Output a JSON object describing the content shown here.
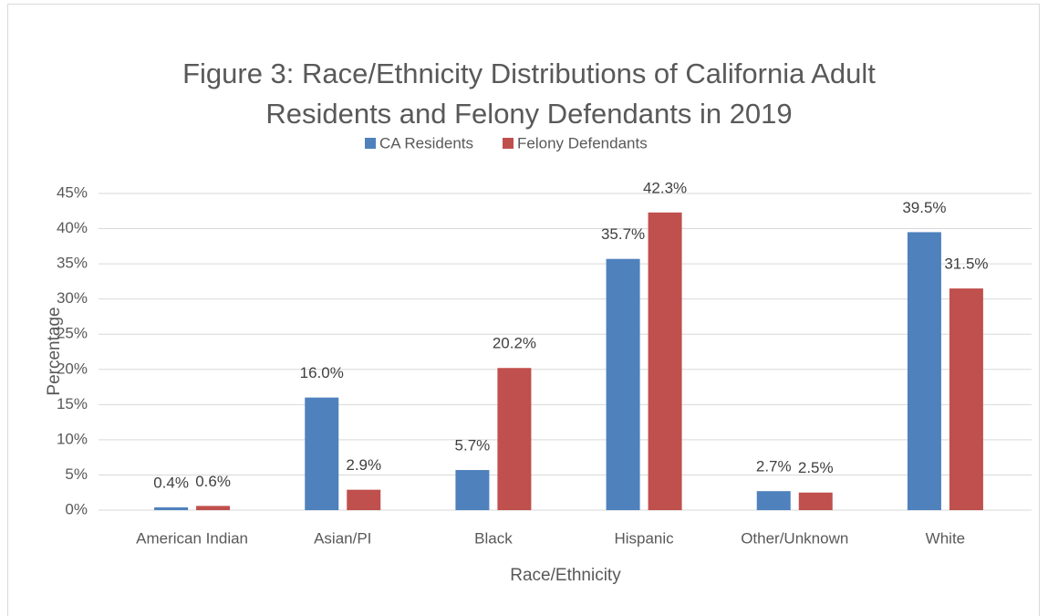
{
  "chart_data": {
    "type": "bar",
    "title_lines": [
      "Figure 3: Race/Ethnicity Distributions of California Adult",
      "Residents and Felony Defendants in 2019"
    ],
    "x_label": "Race/Ethnicity",
    "y_label": "Percentage",
    "categories": [
      "American Indian",
      "Asian/PI",
      "Black",
      "Hispanic",
      "Other/Unknown",
      "White"
    ],
    "series": [
      {
        "name": "CA Residents",
        "color": "#4f81bd",
        "values": [
          0.4,
          16.0,
          5.7,
          35.7,
          2.7,
          39.5
        ],
        "value_labels": [
          "0.4%",
          "16.0%",
          "5.7%",
          "35.7%",
          "2.7%",
          "39.5%"
        ]
      },
      {
        "name": "Felony Defendants",
        "color": "#c0504d",
        "values": [
          0.6,
          2.9,
          20.2,
          42.3,
          2.5,
          31.5
        ],
        "value_labels": [
          "0.6%",
          "2.9%",
          "20.2%",
          "42.3%",
          "2.5%",
          "31.5%"
        ]
      }
    ],
    "ylim": [
      0,
      45
    ],
    "yticks": [
      {
        "value": 0,
        "label": "0%"
      },
      {
        "value": 5,
        "label": "5%"
      },
      {
        "value": 10,
        "label": "10%"
      },
      {
        "value": 15,
        "label": "15%"
      },
      {
        "value": 20,
        "label": "20%"
      },
      {
        "value": 25,
        "label": "25%"
      },
      {
        "value": 30,
        "label": "30%"
      },
      {
        "value": 35,
        "label": "35%"
      },
      {
        "value": 40,
        "label": "40%"
      },
      {
        "value": 45,
        "label": "45%"
      }
    ],
    "grid": true,
    "legend": "top"
  }
}
